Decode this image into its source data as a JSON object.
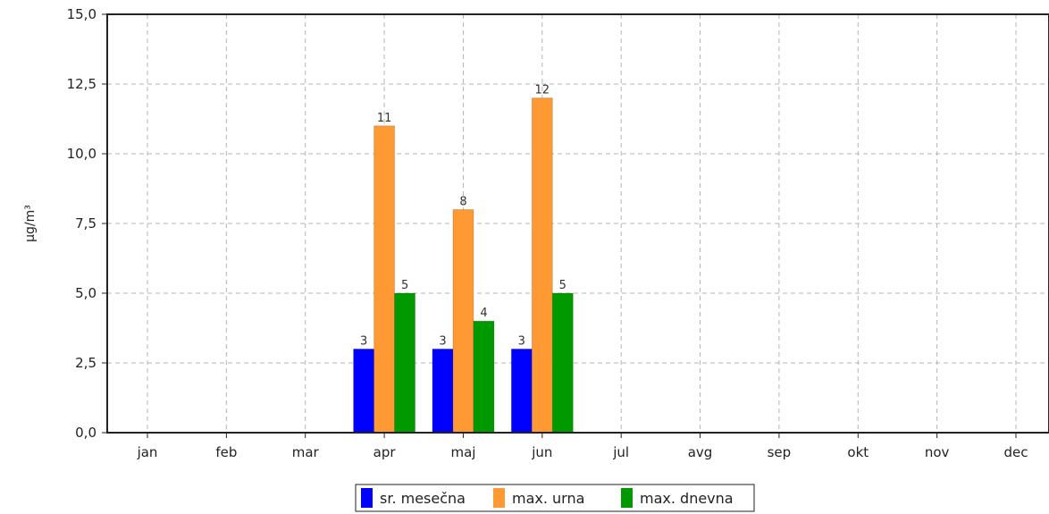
{
  "chart_data": {
    "type": "bar",
    "categories": [
      "jan",
      "feb",
      "mar",
      "apr",
      "maj",
      "jun",
      "jul",
      "avg",
      "sep",
      "okt",
      "nov",
      "dec"
    ],
    "series": [
      {
        "name": "sr. mesečna",
        "color": "#0000ff",
        "values": [
          null,
          null,
          null,
          3,
          3,
          3,
          null,
          null,
          null,
          null,
          null,
          null
        ]
      },
      {
        "name": "max. urna",
        "color": "#ff9933",
        "values": [
          null,
          null,
          null,
          11,
          8,
          12,
          null,
          null,
          null,
          null,
          null,
          null
        ]
      },
      {
        "name": "max. dnevna",
        "color": "#009900",
        "values": [
          null,
          null,
          null,
          5,
          4,
          5,
          null,
          null,
          null,
          null,
          null,
          null
        ]
      }
    ],
    "data_labels": [
      [
        null,
        null,
        null,
        "3",
        "3",
        "3",
        null,
        null,
        null,
        null,
        null,
        null
      ],
      [
        null,
        null,
        null,
        "11",
        "8",
        "12",
        null,
        null,
        null,
        null,
        null,
        null
      ],
      [
        null,
        null,
        null,
        "5",
        "4",
        "5",
        null,
        null,
        null,
        null,
        null,
        null
      ]
    ],
    "ylabel": "μg/m³",
    "ylim": [
      0,
      15
    ],
    "yticks": [
      0,
      2.5,
      5,
      7.5,
      10,
      12.5,
      15
    ],
    "ytick_labels": [
      "0,0",
      "2,5",
      "5,0",
      "7,5",
      "10,0",
      "12,5",
      "15,0"
    ],
    "grid": true,
    "legend_position": "bottom-center"
  }
}
